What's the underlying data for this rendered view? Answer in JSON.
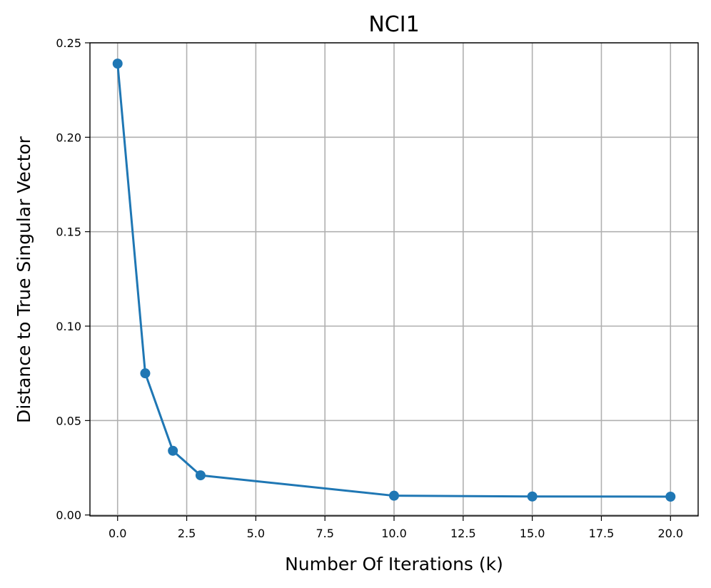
{
  "chart_data": {
    "type": "line",
    "title": "NCI1",
    "xlabel": "Number Of Iterations (k)",
    "ylabel": "Distance to True Singular Vector",
    "xlim": [
      -1.0,
      21.0
    ],
    "ylim": [
      -0.0005,
      0.25
    ],
    "xticks": [
      0.0,
      2.5,
      5.0,
      7.5,
      10.0,
      12.5,
      15.0,
      17.5,
      20.0
    ],
    "xtick_labels": [
      "0.0",
      "2.5",
      "5.0",
      "7.5",
      "10.0",
      "12.5",
      "15.0",
      "17.5",
      "20.0"
    ],
    "yticks": [
      0.0,
      0.05,
      0.1,
      0.15,
      0.2,
      0.25
    ],
    "ytick_labels": [
      "0.00",
      "0.05",
      "0.10",
      "0.15",
      "0.20",
      "0.25"
    ],
    "grid": true,
    "series": [
      {
        "color": "#1f77b4",
        "marker": "circle",
        "x": [
          0,
          1,
          2,
          3,
          10,
          15,
          20
        ],
        "y": [
          0.239,
          0.075,
          0.034,
          0.021,
          0.0102,
          0.0098,
          0.0097
        ]
      }
    ]
  }
}
